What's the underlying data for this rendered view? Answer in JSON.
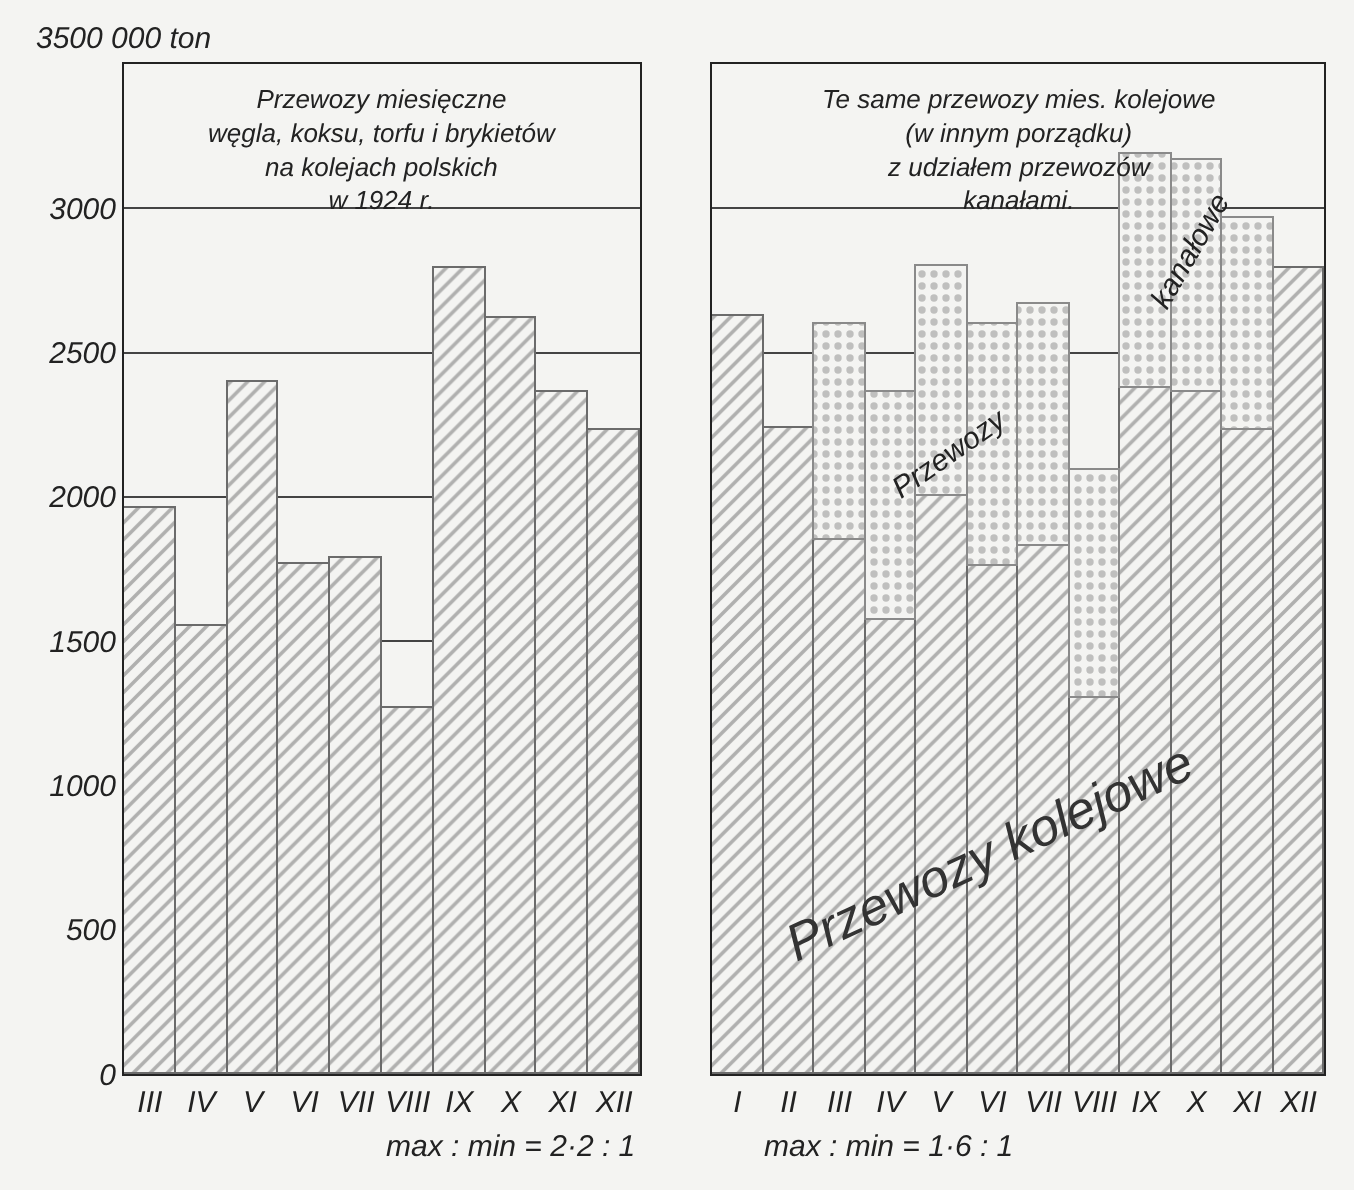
{
  "chart_data": [
    {
      "type": "bar",
      "title": "Przewozy miesięczne\nwęgla, koksu, torfu i brykietów\nna kolejach polskich\nw 1924 r.",
      "categories": [
        "III",
        "IV",
        "V",
        "VI",
        "VII",
        "VIII",
        "IX",
        "X",
        "XI",
        "XII"
      ],
      "values": [
        1960,
        1555,
        2400,
        1765,
        1790,
        1265,
        2790,
        2620,
        2360,
        2230
      ],
      "color": "#6b6b6b",
      "ylim": [
        0,
        3500
      ],
      "yticks": [
        0,
        500,
        1000,
        1500,
        2000,
        2500,
        3000
      ],
      "ylabel": "3500 000 ton",
      "grid": "y",
      "annotations": [
        "max : min = 2·2 : 1"
      ]
    },
    {
      "type": "bar",
      "stacked": true,
      "title": "Te same przewozy mies. kolejowe\n(w innym porządku)\nz udziałem przewozów\nkanałami.",
      "categories": [
        "I",
        "II",
        "III",
        "IV",
        "V",
        "VI",
        "VII",
        "VIII",
        "IX",
        "X",
        "XI",
        "XII"
      ],
      "series": [
        {
          "name": "Przewozy kolejowe",
          "color": "#6b6b6b",
          "values": [
            2625,
            2240,
            1850,
            1575,
            2000,
            1760,
            1830,
            1300,
            2375,
            2360,
            2230,
            2790
          ]
        },
        {
          "color": "#8a8a8a",
          "values": [
            null,
            null,
            750,
            785,
            800,
            840,
            840,
            790,
            815,
            810,
            735,
            null
          ]
        }
      ],
      "ylim": [
        0,
        3500
      ],
      "yticks": [
        0,
        500,
        1000,
        1500,
        2000,
        2500,
        3000
      ],
      "grid": "y",
      "tick_labels": "x",
      "annotations": [
        "Przewozy",
        "kanałowe",
        "max : min = 1·6 : 1"
      ]
    }
  ]
}
